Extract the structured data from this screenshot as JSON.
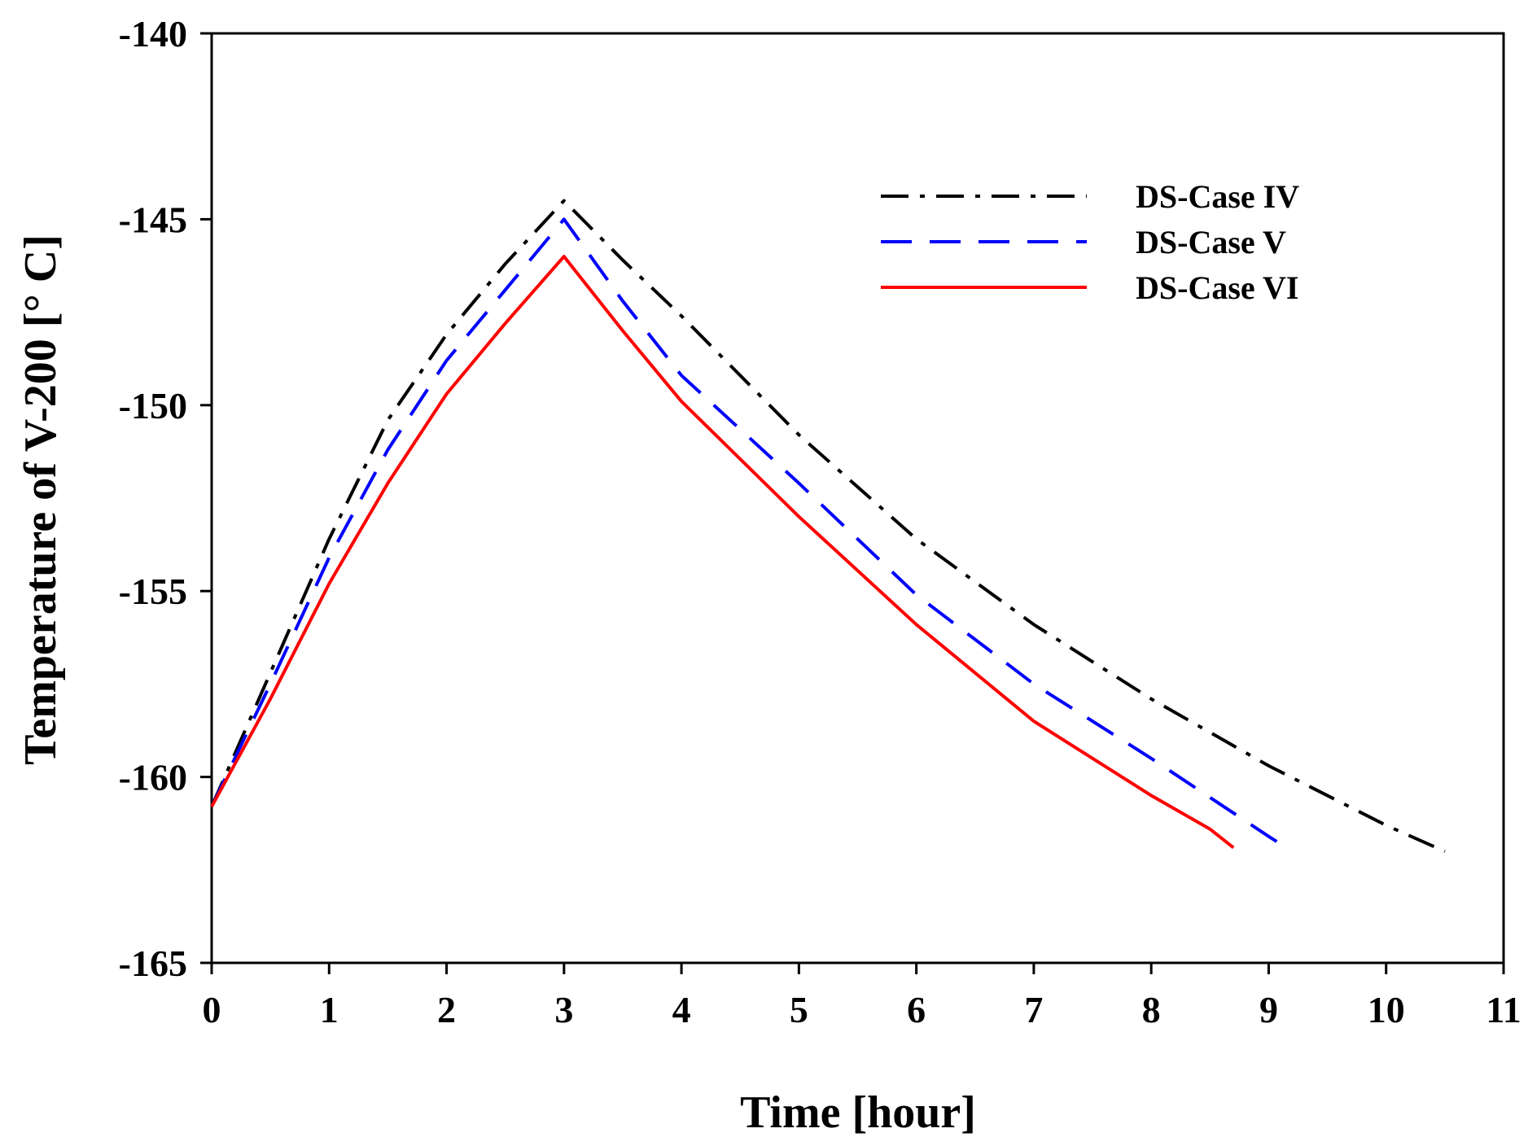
{
  "chart_data": {
    "type": "line",
    "title": "",
    "xlabel": "Time [hour]",
    "ylabel": "Temperature of V-200 [° C]",
    "xlim": [
      0,
      11
    ],
    "ylim": [
      -165,
      -140
    ],
    "xticks": [
      0,
      1,
      2,
      3,
      4,
      5,
      6,
      7,
      8,
      9,
      10,
      11
    ],
    "yticks": [
      -165,
      -160,
      -155,
      -150,
      -145,
      -140
    ],
    "legend_position": "top-right",
    "series": [
      {
        "name": "DS-Case IV",
        "color": "#000000",
        "style": "dashdot",
        "points": [
          [
            0,
            -160.8
          ],
          [
            0.5,
            -157.2
          ],
          [
            1,
            -153.6
          ],
          [
            1.5,
            -150.4
          ],
          [
            2,
            -148.1
          ],
          [
            2.5,
            -146.2
          ],
          [
            3,
            -144.5
          ],
          [
            3.5,
            -146.1
          ],
          [
            4,
            -147.6
          ],
          [
            5,
            -150.8
          ],
          [
            6,
            -153.6
          ],
          [
            7,
            -155.9
          ],
          [
            8,
            -157.9
          ],
          [
            9,
            -159.7
          ],
          [
            10,
            -161.3
          ],
          [
            10.5,
            -162.0
          ]
        ]
      },
      {
        "name": "DS-Case V",
        "color": "#0000ff",
        "style": "dashed",
        "points": [
          [
            0,
            -160.8
          ],
          [
            0.5,
            -157.5
          ],
          [
            1,
            -154.1
          ],
          [
            1.5,
            -151.2
          ],
          [
            2,
            -148.8
          ],
          [
            2.5,
            -146.9
          ],
          [
            3,
            -145.0
          ],
          [
            3.5,
            -147.2
          ],
          [
            4,
            -149.2
          ],
          [
            5,
            -152.1
          ],
          [
            6,
            -155.1
          ],
          [
            7,
            -157.5
          ],
          [
            8,
            -159.5
          ],
          [
            9,
            -161.6
          ],
          [
            9.1,
            -161.8
          ]
        ]
      },
      {
        "name": "DS-Case VI",
        "color": "#ff0000",
        "style": "solid",
        "points": [
          [
            0,
            -160.8
          ],
          [
            0.5,
            -157.9
          ],
          [
            1,
            -154.8
          ],
          [
            1.5,
            -152.1
          ],
          [
            2,
            -149.7
          ],
          [
            2.5,
            -147.8
          ],
          [
            3,
            -146.0
          ],
          [
            3.5,
            -148.0
          ],
          [
            4,
            -149.9
          ],
          [
            5,
            -153.0
          ],
          [
            6,
            -155.9
          ],
          [
            7,
            -158.5
          ],
          [
            8,
            -160.5
          ],
          [
            8.5,
            -161.4
          ],
          [
            8.7,
            -161.9
          ]
        ]
      }
    ]
  }
}
